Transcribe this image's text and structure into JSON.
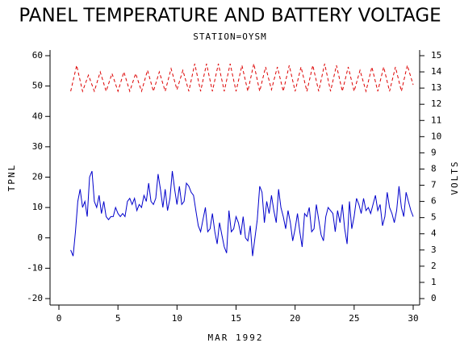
{
  "chart_data": {
    "type": "line",
    "title": "PANEL TEMPERATURE AND BATTERY VOLTAGE",
    "subtitle": "STATION=OYSM",
    "x_label": "MAR 1992",
    "y_label": "TPNL",
    "y2_label": "VOLTS",
    "xlim": [
      0,
      30
    ],
    "xticks": [
      0,
      5,
      10,
      15,
      20,
      25,
      30
    ],
    "ylim": [
      -20,
      60
    ],
    "yticks": [
      -20,
      -10,
      0,
      10,
      20,
      30,
      40,
      50,
      60
    ],
    "y2lim": [
      0,
      15
    ],
    "y2ticks": [
      0,
      1,
      2,
      3,
      4,
      5,
      6,
      7,
      8,
      9,
      10,
      11,
      12,
      13,
      14,
      15
    ],
    "series": [
      {
        "name": "TPNL",
        "color": "#0000cc",
        "dashed": false,
        "x": [
          1.0,
          1.2,
          1.4,
          1.6,
          1.8,
          2.0,
          2.2,
          2.4,
          2.6,
          2.8,
          3.0,
          3.2,
          3.4,
          3.6,
          3.8,
          4.0,
          4.2,
          4.4,
          4.6,
          4.8,
          5.0,
          5.2,
          5.4,
          5.6,
          5.8,
          6.0,
          6.2,
          6.4,
          6.6,
          6.8,
          7.0,
          7.2,
          7.4,
          7.6,
          7.8,
          8.0,
          8.2,
          8.4,
          8.6,
          8.8,
          9.0,
          9.2,
          9.4,
          9.6,
          9.8,
          10.0,
          10.2,
          10.4,
          10.6,
          10.8,
          11.0,
          11.2,
          11.4,
          11.6,
          11.8,
          12.0,
          12.2,
          12.4,
          12.6,
          12.8,
          13.0,
          13.2,
          13.4,
          13.6,
          13.8,
          14.0,
          14.2,
          14.4,
          14.6,
          14.8,
          15.0,
          15.2,
          15.4,
          15.6,
          15.8,
          16.0,
          16.2,
          16.4,
          16.6,
          16.8,
          17.0,
          17.2,
          17.4,
          17.6,
          17.8,
          18.0,
          18.2,
          18.4,
          18.6,
          18.8,
          19.0,
          19.2,
          19.4,
          19.6,
          19.8,
          20.0,
          20.2,
          20.4,
          20.6,
          20.8,
          21.0,
          21.2,
          21.4,
          21.6,
          21.8,
          22.0,
          22.2,
          22.4,
          22.6,
          22.8,
          23.0,
          23.2,
          23.4,
          23.6,
          23.8,
          24.0,
          24.2,
          24.4,
          24.6,
          24.8,
          25.0,
          25.2,
          25.4,
          25.6,
          25.8,
          26.0,
          26.2,
          26.4,
          26.6,
          26.8,
          27.0,
          27.2,
          27.4,
          27.6,
          27.8,
          28.0,
          28.2,
          28.4,
          28.6,
          28.8,
          29.0,
          29.2,
          29.4,
          29.6,
          29.8,
          30.0
        ],
        "values": [
          -4,
          -6,
          2,
          12,
          16,
          10,
          12,
          7,
          20,
          22,
          12,
          10,
          14,
          8,
          12,
          7,
          6,
          7,
          7,
          10,
          8,
          7,
          8,
          7,
          12,
          13,
          11,
          13,
          9,
          11,
          10,
          14,
          12,
          18,
          12,
          11,
          13,
          21,
          16,
          10,
          16,
          9,
          13,
          22,
          16,
          11,
          17,
          11,
          12,
          18,
          17,
          15,
          14,
          9,
          4,
          2,
          6,
          10,
          2,
          3,
          8,
          2,
          -2,
          5,
          1,
          -3,
          -5,
          9,
          2,
          3,
          7,
          5,
          1,
          7,
          0,
          -1,
          4,
          -6,
          0,
          6,
          17,
          15,
          5,
          12,
          8,
          14,
          9,
          5,
          16,
          10,
          7,
          3,
          9,
          5,
          -1,
          3,
          8,
          2,
          -3,
          8,
          7,
          10,
          2,
          3,
          11,
          6,
          1,
          -1,
          7,
          10,
          9,
          8,
          2,
          9,
          5,
          11,
          3,
          -2,
          12,
          3,
          7,
          13,
          11,
          8,
          13,
          9,
          10,
          8,
          11,
          14,
          9,
          11,
          4,
          7,
          15,
          10,
          8,
          5,
          9,
          17,
          10,
          7,
          15,
          12,
          9,
          7
        ]
      },
      {
        "name": "VOLTS",
        "color": "#dd0000",
        "dashed": true,
        "axis": "y2",
        "x": [
          1.0,
          1.5,
          2.0,
          2.5,
          3.0,
          3.5,
          4.0,
          4.5,
          5.0,
          5.5,
          6.0,
          6.5,
          7.0,
          7.5,
          8.0,
          8.5,
          9.0,
          9.5,
          10.0,
          10.5,
          11.0,
          11.5,
          12.0,
          12.5,
          13.0,
          13.5,
          14.0,
          14.5,
          15.0,
          15.5,
          16.0,
          16.5,
          17.0,
          17.5,
          18.0,
          18.5,
          19.0,
          19.5,
          20.0,
          20.5,
          21.0,
          21.5,
          22.0,
          22.5,
          23.0,
          23.5,
          24.0,
          24.5,
          25.0,
          25.5,
          26.0,
          26.5,
          27.0,
          27.5,
          28.0,
          28.5,
          29.0,
          29.5,
          30.0
        ],
        "values": [
          12.8,
          14.4,
          12.8,
          13.8,
          12.8,
          14.0,
          12.8,
          13.9,
          12.8,
          14.0,
          12.8,
          13.9,
          12.8,
          14.1,
          12.8,
          14.0,
          12.8,
          14.2,
          12.9,
          14.1,
          12.8,
          14.5,
          12.8,
          14.5,
          12.8,
          14.5,
          12.8,
          14.5,
          12.8,
          14.4,
          12.8,
          14.5,
          12.8,
          14.3,
          12.9,
          14.3,
          12.8,
          14.4,
          12.8,
          14.3,
          12.8,
          14.4,
          12.8,
          14.5,
          12.8,
          14.4,
          12.8,
          14.3,
          12.8,
          14.1,
          12.8,
          14.3,
          12.8,
          14.3,
          12.8,
          14.3,
          12.8,
          14.4,
          13.2
        ]
      }
    ]
  }
}
